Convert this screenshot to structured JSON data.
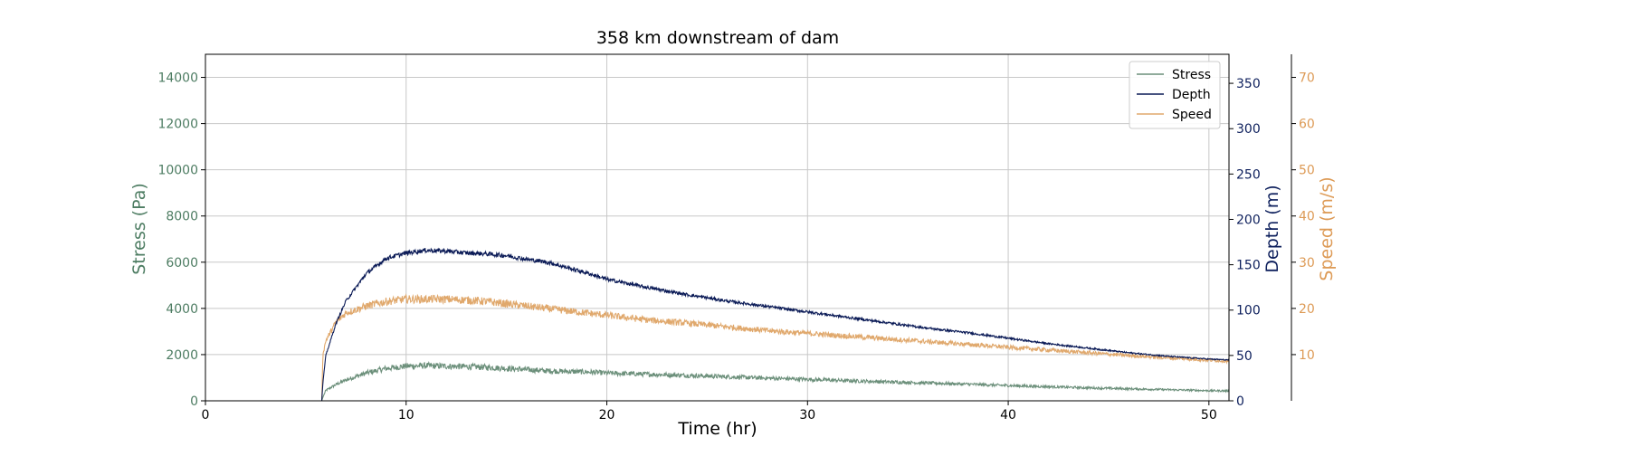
{
  "chart_data": {
    "type": "line",
    "title": "358 km downstream of dam",
    "xlabel": "Time (hr)",
    "xlim": [
      0,
      51
    ],
    "x_ticks": [
      0,
      10,
      20,
      30,
      40,
      50
    ],
    "grid": true,
    "legend_position": "top-right",
    "axes": {
      "stress": {
        "label": "Stress (Pa)",
        "ylim": [
          0,
          15000
        ],
        "ticks": [
          0,
          2000,
          4000,
          6000,
          8000,
          10000,
          12000,
          14000
        ],
        "color": "#4e7d63",
        "side": "left"
      },
      "depth": {
        "label": "Depth (m)",
        "ylim": [
          0,
          382
        ],
        "ticks": [
          0,
          50,
          100,
          150,
          200,
          250,
          300,
          350
        ],
        "color": "#0d1f5c",
        "side": "right"
      },
      "speed": {
        "label": "Speed (m/s)",
        "ylim": [
          0,
          75
        ],
        "ticks": [
          10,
          20,
          30,
          40,
          50,
          60,
          70
        ],
        "color": "#dd9a55",
        "side": "right-outer"
      }
    },
    "series": [
      {
        "name": "Stress",
        "axis": "stress",
        "color": "#6b8f7a",
        "noise": 0.09,
        "x": [
          0,
          5.8,
          5.85,
          6,
          6.5,
          7,
          8,
          9,
          10,
          11,
          12,
          13,
          14,
          15,
          16,
          17,
          18,
          19,
          20,
          22,
          24,
          26,
          28,
          30,
          32,
          34,
          36,
          38,
          40,
          42,
          44,
          46,
          48,
          50,
          51
        ],
        "y": [
          0,
          0,
          150,
          450,
          700,
          900,
          1200,
          1400,
          1500,
          1520,
          1500,
          1480,
          1450,
          1400,
          1350,
          1300,
          1270,
          1250,
          1200,
          1150,
          1100,
          1040,
          980,
          930,
          870,
          820,
          770,
          720,
          660,
          610,
          560,
          520,
          480,
          440,
          430
        ]
      },
      {
        "name": "Depth",
        "axis": "depth",
        "color": "#0a1a56",
        "noise": 0.015,
        "x": [
          0,
          5.8,
          5.85,
          6,
          6.5,
          7,
          8,
          9,
          10,
          11,
          12,
          13,
          14,
          15,
          16,
          17,
          18,
          19,
          20,
          22,
          24,
          26,
          28,
          30,
          32,
          34,
          36,
          38,
          40,
          42,
          44,
          46,
          48,
          50,
          51
        ],
        "y": [
          0,
          0,
          20,
          50,
          85,
          110,
          140,
          157,
          163,
          166,
          165,
          163,
          162,
          160,
          156,
          153,
          147,
          141,
          134,
          125,
          117,
          110,
          104,
          98,
          92,
          86,
          80,
          75,
          69,
          63,
          58,
          53,
          49,
          46,
          45
        ]
      },
      {
        "name": "Speed",
        "axis": "speed",
        "color": "#e0a86c",
        "noise": 0.04,
        "x": [
          0,
          5.8,
          5.85,
          6,
          6.5,
          7,
          8,
          9,
          10,
          11,
          12,
          13,
          14,
          15,
          16,
          17,
          18,
          19,
          20,
          22,
          24,
          26,
          28,
          30,
          32,
          34,
          36,
          38,
          40,
          42,
          44,
          46,
          48,
          50,
          51
        ],
        "y": [
          0,
          0,
          10,
          13,
          17,
          19,
          20.5,
          21.5,
          22,
          22,
          22,
          21.8,
          21.5,
          21,
          20.5,
          20,
          19.5,
          19,
          18.5,
          17.5,
          16.8,
          16,
          15.2,
          14.6,
          14,
          13.4,
          12.8,
          12.2,
          11.6,
          11,
          10.4,
          9.8,
          9.3,
          8.8,
          8.6
        ]
      }
    ]
  }
}
